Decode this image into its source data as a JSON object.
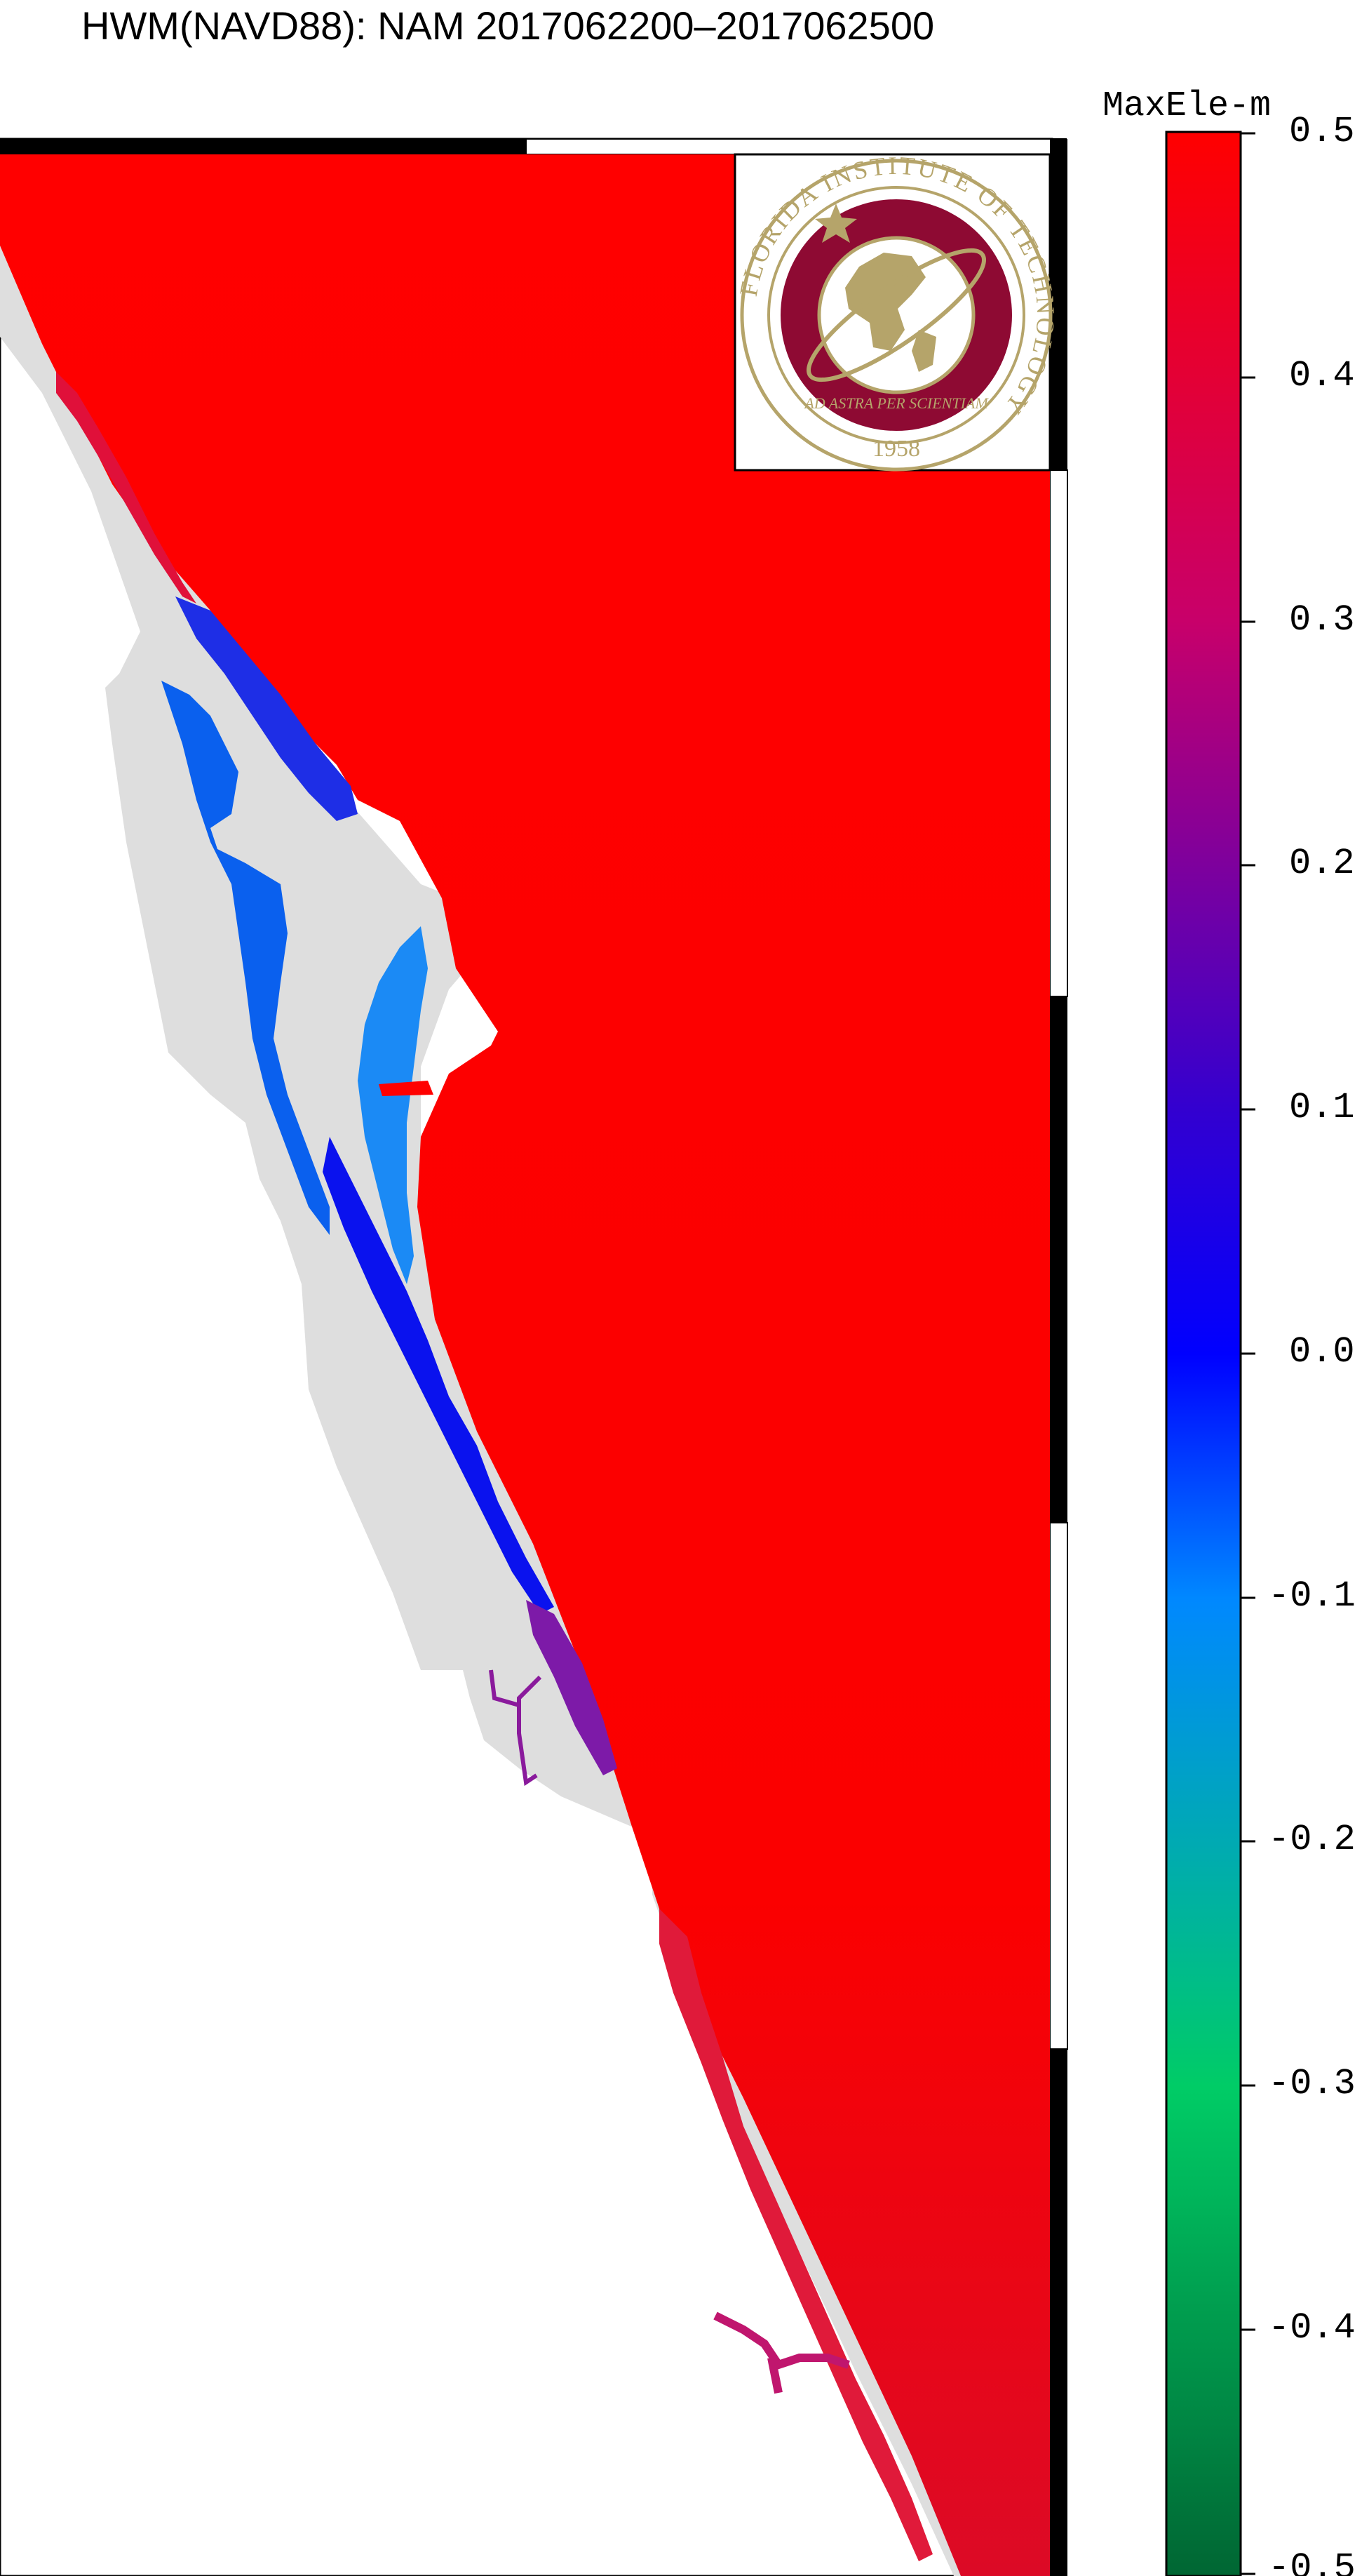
{
  "title": "HWM(NAVD88): NAM 2017062200–2017062500",
  "colorbar": {
    "label": "MaxEle-m",
    "min": -0.5,
    "max": 0.5,
    "tick_labels": [
      "0.5",
      "0.4",
      "0.3",
      "0.2",
      "0.1",
      "0.0",
      "-0.1",
      "-0.2",
      "-0.3",
      "-0.4",
      "-0.5"
    ],
    "gradient_stops": [
      {
        "value": 0.5,
        "color": "#ff0000"
      },
      {
        "value": 0.3,
        "color": "#c8006a"
      },
      {
        "value": 0.1,
        "color": "#3300d0"
      },
      {
        "value": 0.0,
        "color": "#0000ff"
      },
      {
        "value": -0.1,
        "color": "#0088ff"
      },
      {
        "value": -0.3,
        "color": "#00cc66"
      },
      {
        "value": -0.5,
        "color": "#006633"
      }
    ]
  },
  "logo": {
    "ring_text": "FLORIDA INSTITUTE OF TECHNOLOGY",
    "motto": "AD ASTRA PER SCIENTIAM",
    "year": "1958",
    "colors": {
      "gold": "#b5a46a",
      "maroon": "#8e0a33"
    }
  },
  "map": {
    "ocean_color": "#fb0000",
    "land_mesh_color": "#dedede",
    "region_values": {
      "north_lagoon": 0.38,
      "mosquito_lagoon": 0.05,
      "banana_river": -0.08,
      "north_indian_river": -0.05,
      "central_indian_river": 0.02,
      "tributary_creek": 0.22,
      "south_indian_river": 0.42,
      "st_lucie_river": 0.33
    }
  }
}
